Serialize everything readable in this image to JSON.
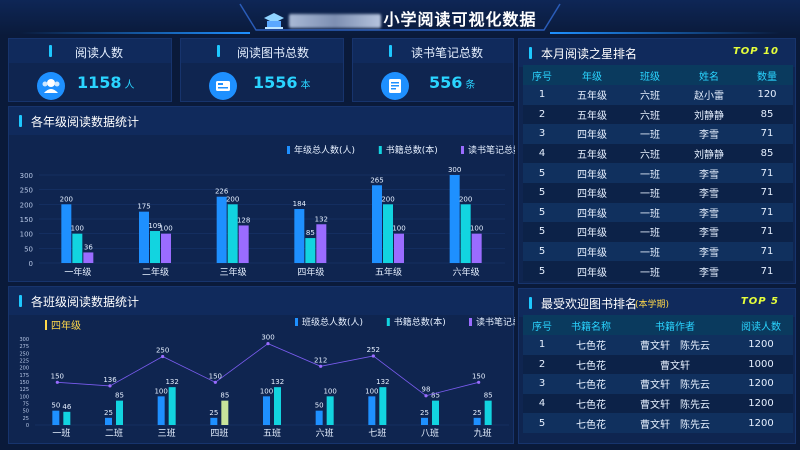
{
  "header": {
    "title": "小学阅读可视化数据"
  },
  "stats": [
    {
      "label": "阅读人数",
      "value": "1158",
      "unit": "人",
      "icon": "people-icon"
    },
    {
      "label": "阅读图书总数",
      "value": "1556",
      "unit": "本",
      "icon": "book-card-icon"
    },
    {
      "label": "读书笔记总数",
      "value": "556",
      "unit": "条",
      "icon": "notes-icon"
    }
  ],
  "grade_panel": {
    "title": "各年级阅读数据统计"
  },
  "class_panel": {
    "title": "各班级阅读数据统计",
    "grade_label": "四年级"
  },
  "star_ranking": {
    "title": "本月阅读之星排名",
    "badge": "TOP 10",
    "columns": [
      "序号",
      "年级",
      "班级",
      "姓名",
      "数量"
    ],
    "rows": [
      [
        "1",
        "五年级",
        "六班",
        "赵小雷",
        "120"
      ],
      [
        "2",
        "五年级",
        "六班",
        "刘静静",
        "85"
      ],
      [
        "3",
        "四年级",
        "一班",
        "李雪",
        "71"
      ],
      [
        "4",
        "五年级",
        "六班",
        "刘静静",
        "85"
      ],
      [
        "5",
        "四年级",
        "一班",
        "李雪",
        "71"
      ],
      [
        "5",
        "四年级",
        "一班",
        "李雪",
        "71"
      ],
      [
        "5",
        "四年级",
        "一班",
        "李雪",
        "71"
      ],
      [
        "5",
        "四年级",
        "一班",
        "李雪",
        "71"
      ],
      [
        "5",
        "四年级",
        "一班",
        "李雪",
        "71"
      ],
      [
        "5",
        "四年级",
        "一班",
        "李雪",
        "71"
      ]
    ]
  },
  "book_ranking": {
    "title": "最受欢迎图书排名",
    "period": "(本学期)",
    "badge": "TOP 5",
    "columns": [
      "序号",
      "书籍名称",
      "书籍作者",
      "阅读人数"
    ],
    "rows": [
      [
        "1",
        "七色花",
        "曹文轩　陈先云",
        "1200"
      ],
      [
        "2",
        "七色花",
        "曹文轩",
        "1000"
      ],
      [
        "3",
        "七色花",
        "曹文轩　陈先云",
        "1200"
      ],
      [
        "4",
        "七色花",
        "曹文轩　陈先云",
        "1200"
      ],
      [
        "5",
        "七色花",
        "曹文轩　陈先云",
        "1200"
      ]
    ]
  },
  "colors": {
    "series1": "#1e90ff",
    "series2": "#12d4e0",
    "series3": "#9a6cff",
    "bg": "#0a1a3a",
    "panel": "#0f2550",
    "accent": "#2ad4ff"
  },
  "chart_data": [
    {
      "type": "bar",
      "categories": [
        "一年级",
        "二年级",
        "三年级",
        "四年级",
        "五年级",
        "六年级"
      ],
      "series": [
        {
          "name": "年级总人数(人)",
          "values": [
            200,
            175,
            226,
            184,
            265,
            300
          ]
        },
        {
          "name": "书籍总数(本)",
          "values": [
            100,
            109,
            200,
            85,
            200,
            200
          ]
        },
        {
          "name": "读书笔记总数(条)",
          "values": [
            36,
            100,
            128,
            132,
            100,
            100
          ]
        }
      ],
      "yticks": [
        0,
        50,
        100,
        150,
        200,
        250,
        300
      ],
      "ylim": [
        0,
        300
      ],
      "legend": "top-right"
    },
    {
      "type": "bar",
      "categories": [
        "一班",
        "二班",
        "三班",
        "四班",
        "五班",
        "六班",
        "七班",
        "八班",
        "九班"
      ],
      "series": [
        {
          "name": "班级总人数(人)",
          "values": [
            50,
            25,
            100,
            25,
            100,
            50,
            100,
            25,
            25
          ]
        },
        {
          "name": "书籍总数(本)",
          "values": [
            46,
            85,
            132,
            85,
            132,
            100,
            132,
            85,
            85
          ]
        },
        {
          "name": "读书笔记总数(条)",
          "values": [
            150,
            136,
            250,
            150,
            300,
            212,
            252,
            98,
            150
          ]
        }
      ],
      "line_series": "读书笔记总数(条)",
      "yticks": [
        0,
        25,
        50,
        75,
        100,
        125,
        150,
        175,
        200,
        225,
        250,
        275,
        300
      ],
      "ylim": [
        0,
        300
      ],
      "legend": "top-right"
    }
  ]
}
